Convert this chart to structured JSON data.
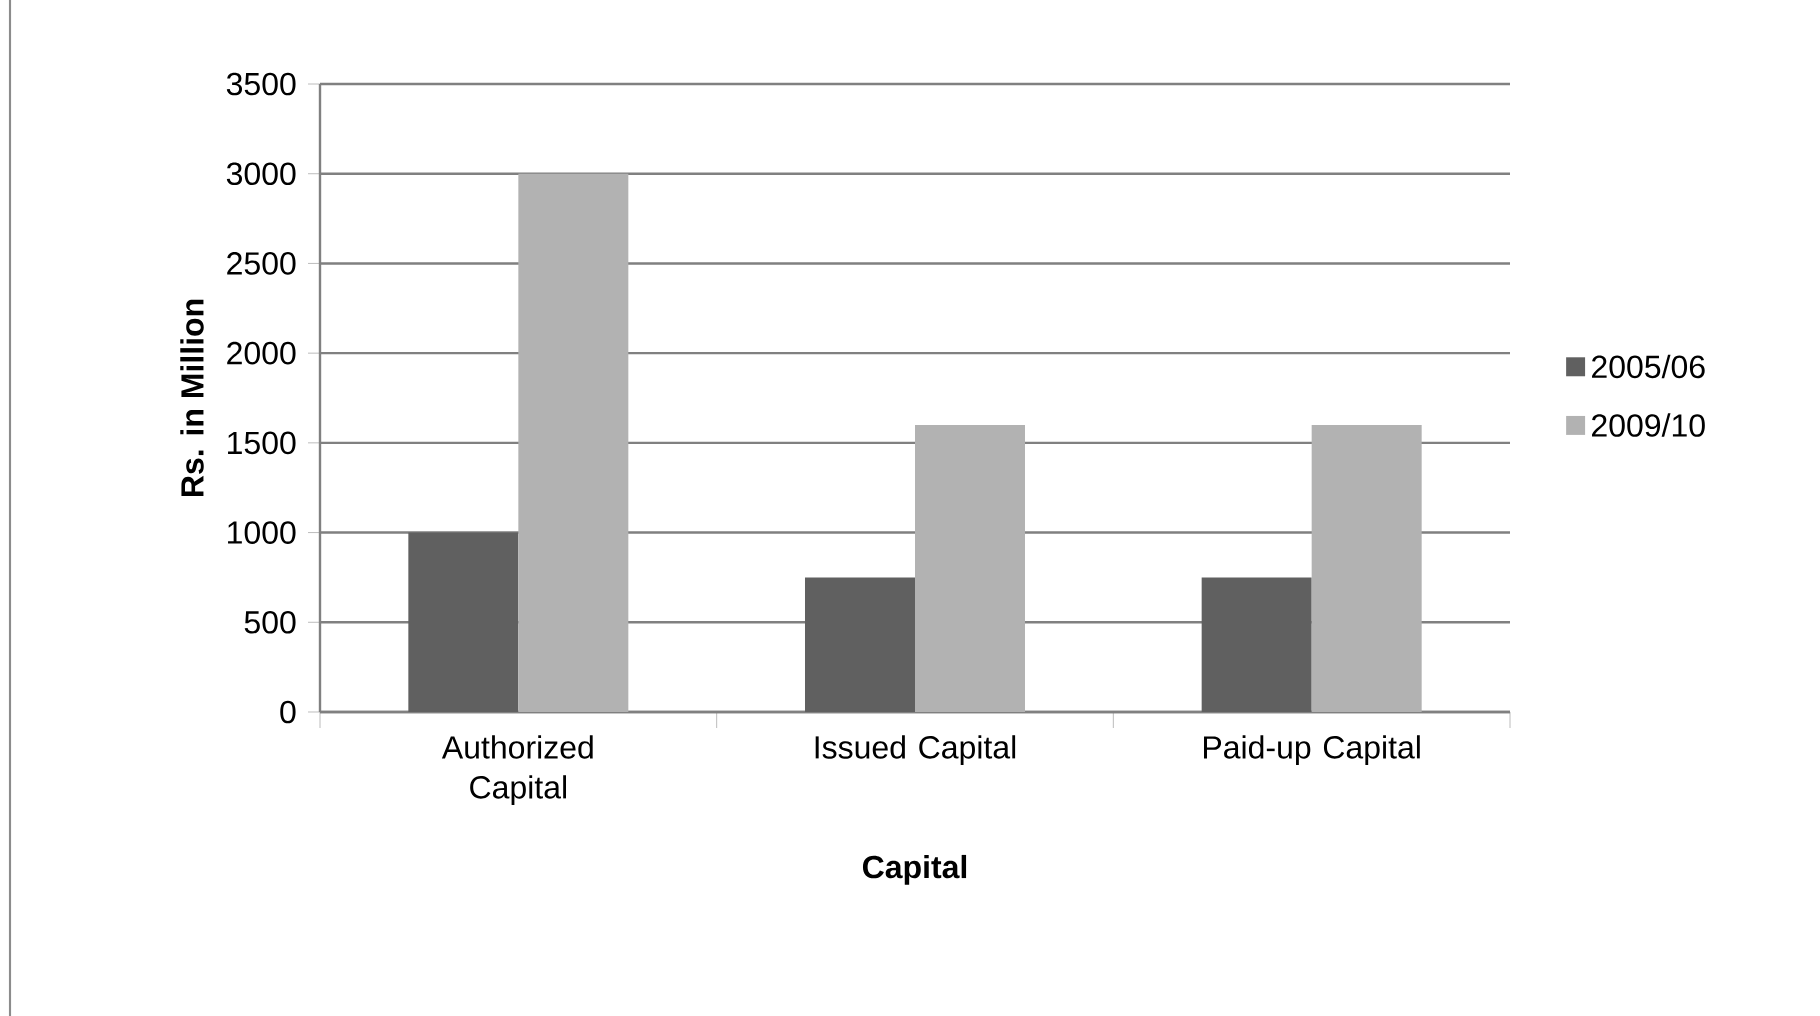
{
  "chart_data": {
    "type": "bar",
    "xlabel": "Capital",
    "ylabel": "Rs. in Million",
    "categories": [
      "Authorized Capital",
      "Issued Capital",
      "Paid-up Capital"
    ],
    "series": [
      {
        "name": "2005/06",
        "color": "#606060",
        "values": [
          1000,
          750,
          750
        ]
      },
      {
        "name": "2009/10",
        "color": "#b2b2b2",
        "values": [
          3000,
          1600,
          1600
        ]
      }
    ],
    "ylim": [
      0,
      3500
    ],
    "yticks": [
      0,
      500,
      1000,
      1500,
      2000,
      2500,
      3000,
      3500
    ],
    "grid": "y",
    "legend": "right"
  }
}
